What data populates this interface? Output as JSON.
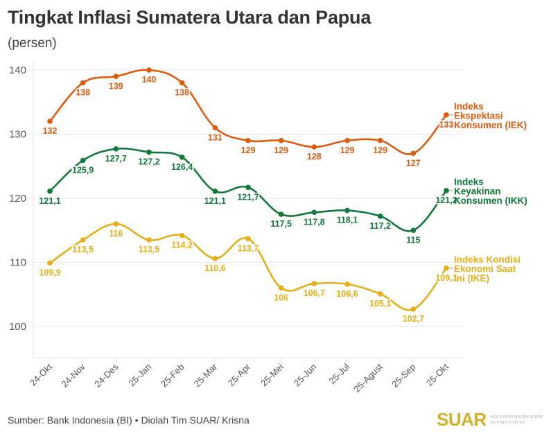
{
  "header": {
    "title": "Tingkat Inflasi Sumatera Utara dan Papua",
    "subtitle": "(persen)"
  },
  "footer": {
    "source": "Sumber: Bank Indonesia (BI) • Diolah Tim SUAR/ Krisna",
    "logo": "SUAR",
    "logo_tagline_1": "SOLUTION JOURNALISM",
    "logo_tagline_2": "for EXECUTIVES",
    "logo_color": "#D4AF2B"
  },
  "chart_data": {
    "type": "line",
    "title": "Tingkat Inflasi Sumatera Utara dan Papua",
    "subtitle": "(persen)",
    "xlabel": "",
    "ylabel": "",
    "categories": [
      "24-Okt",
      "24-Nov",
      "24-Des",
      "25-Jan",
      "25-Feb",
      "25-Mar",
      "25-Apr",
      "25-Mei",
      "25-Jun",
      "25-Jul",
      "25-Agust",
      "25-Sep",
      "25-Okt"
    ],
    "y_ticks": [
      100,
      110,
      120,
      130,
      140
    ],
    "ylim": [
      95,
      141
    ],
    "grid": true,
    "legend": "right (inline labels at line ends)",
    "series": [
      {
        "name": "Indeks Ekspektasi Konsumen (IEK)",
        "label_lines": [
          "Indeks",
          "Ekspektasi",
          "Konsumen (IEK)"
        ],
        "color": "#E05A0C",
        "values": [
          132,
          138,
          139,
          140,
          138,
          131,
          129,
          129,
          128,
          129,
          129,
          127,
          133
        ],
        "labels": [
          "132",
          "138",
          "139",
          "140",
          "138",
          "131",
          "129",
          "129",
          "128",
          "129",
          "129",
          "127",
          "133"
        ]
      },
      {
        "name": "Indeks Keyakinan Konsumen (IKK)",
        "label_lines": [
          "Indeks",
          "Keyakinan",
          "Konsumen (IKK)"
        ],
        "color": "#0E7A3A",
        "values": [
          121.1,
          125.9,
          127.7,
          127.2,
          126.4,
          121.1,
          121.7,
          117.5,
          117.8,
          118.1,
          117.2,
          115,
          121.2
        ],
        "labels": [
          "121,1",
          "125,9",
          "127,7",
          "127,2",
          "126,4",
          "121,1",
          "121,7",
          "117,5",
          "117,8",
          "118,1",
          "117,2",
          "115",
          "121,2"
        ]
      },
      {
        "name": "Indeks Kondisi Ekonomi Saat Ini (IKE)",
        "label_lines": [
          "Indeks Kondisi",
          "Ekonomi Saat",
          "Ini (IKE)"
        ],
        "color": "#E8AE14",
        "values": [
          109.9,
          113.5,
          116,
          113.5,
          114.2,
          110.6,
          113.7,
          106,
          106.7,
          106.6,
          105.1,
          102.7,
          109.1
        ],
        "labels": [
          "109,9",
          "113,5",
          "116",
          "113,5",
          "114,2",
          "110,6",
          "113,7",
          "106",
          "106,7",
          "106,6",
          "105,1",
          "102,7",
          "109,1"
        ]
      }
    ]
  }
}
